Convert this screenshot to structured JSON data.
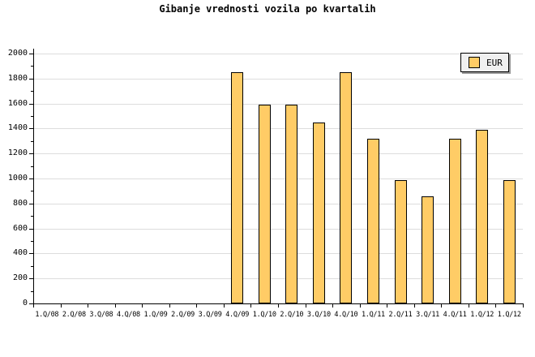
{
  "title": "Gibanje vrednosti vozila po kvartalih",
  "legend": {
    "label": "EUR",
    "position": "top-right"
  },
  "colors": {
    "background": "#FFFFFF",
    "bar_fill": "#FFCC66",
    "bar_border": "#000000",
    "gridline": "#DDDDDD",
    "axis": "#000000",
    "text": "#000000",
    "legend_bg": "#F0F0F0",
    "legend_border": "#000000",
    "legend_shadow": "#999999"
  },
  "chart_data": {
    "type": "bar",
    "title": "Gibanje vrednosti vozila po kvartalih",
    "categories": [
      "1.Q/08",
      "2.Q/08",
      "3.Q/08",
      "4.Q/08",
      "1.Q/09",
      "2.Q/09",
      "3.Q/09",
      "4.Q/09",
      "1.Q/10",
      "2.Q/10",
      "3.Q/10",
      "4.Q/10",
      "1.Q/11",
      "2.Q/11",
      "3.Q/11",
      "4.Q/11",
      "1.Q/12",
      "1.Q/12"
    ],
    "series": [
      {
        "name": "EUR",
        "values": [
          null,
          null,
          null,
          null,
          null,
          null,
          null,
          1850,
          1590,
          1590,
          1450,
          1850,
          1320,
          990,
          860,
          1320,
          1390,
          990
        ]
      }
    ],
    "xlabel": "",
    "ylabel": "",
    "ylim": [
      0,
      2000
    ],
    "y_major_step": 200,
    "y_minor_step": 100,
    "y_tick_labels": [
      "0",
      "200",
      "400",
      "600",
      "800",
      "1000",
      "1200",
      "1400",
      "1600",
      "1800",
      "2000"
    ],
    "grid": true,
    "legend_position": "top-right"
  }
}
